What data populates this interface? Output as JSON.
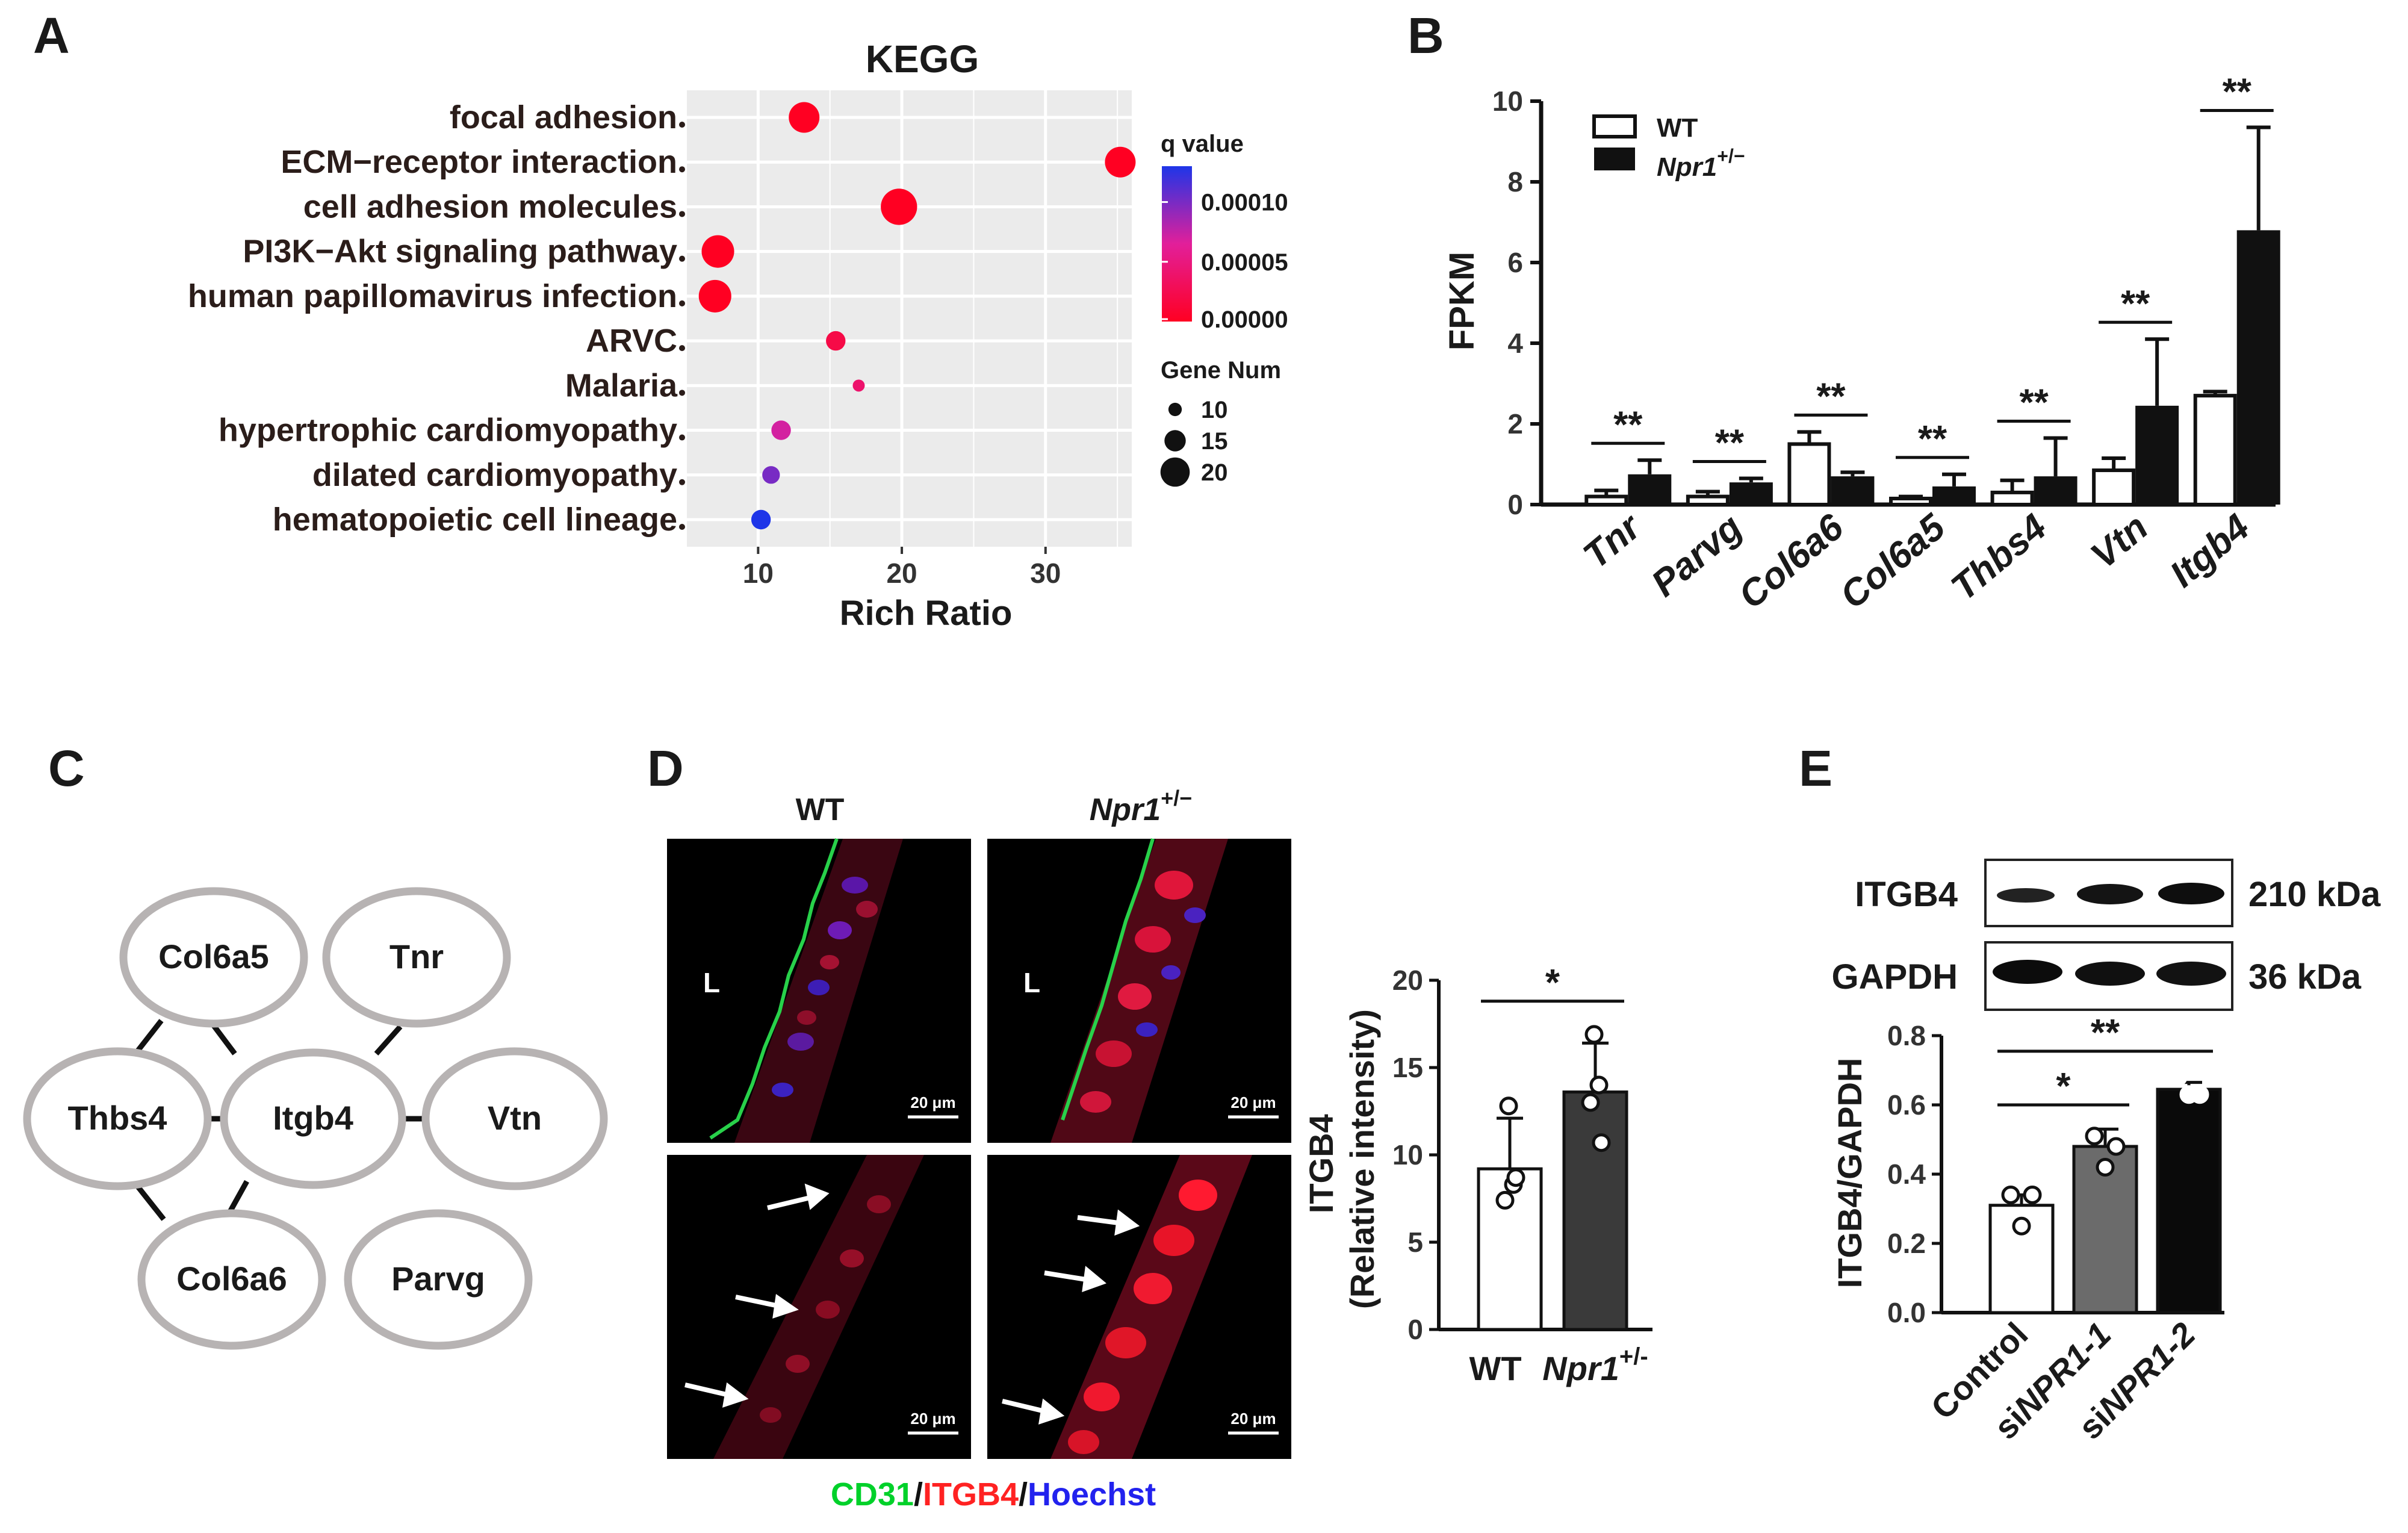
{
  "panel_labels": {
    "a": "A",
    "b": "B",
    "c": "C",
    "d": "D",
    "e": "E"
  },
  "chart_data": [
    {
      "panel": "A",
      "type": "scatter",
      "title": "KEGG",
      "xlabel": "Rich Ratio",
      "ylabel": "",
      "xlim": [
        5,
        36
      ],
      "xticks": [
        10,
        20,
        30
      ],
      "categories": [
        "focal adhesion",
        "ECM−receptor interaction",
        "cell adhesion molecules",
        "PI3K−Akt signaling pathway",
        "human papillomavirus infection",
        "ARVC",
        "Malaria",
        "hypertrophic cardiomyopathy",
        "dilated cardiomyopathy",
        "hematopoietic cell lineage"
      ],
      "points": [
        {
          "x": 13.2,
          "gene_num": 18,
          "q": 0.0
        },
        {
          "x": 35.2,
          "gene_num": 18,
          "q": 0.0
        },
        {
          "x": 19.8,
          "gene_num": 21,
          "q": 0.0
        },
        {
          "x": 7.2,
          "gene_num": 19,
          "q": 0.0
        },
        {
          "x": 7.0,
          "gene_num": 19,
          "q": 0.0
        },
        {
          "x": 15.4,
          "gene_num": 12,
          "q": 2e-05
        },
        {
          "x": 17.0,
          "gene_num": 8,
          "q": 4e-05
        },
        {
          "x": 11.6,
          "gene_num": 12,
          "q": 7e-05
        },
        {
          "x": 10.9,
          "gene_num": 11,
          "q": 0.0001
        },
        {
          "x": 10.2,
          "gene_num": 12,
          "q": 0.00013
        }
      ],
      "color_legend": {
        "title": "q value",
        "labels": [
          "0.00010",
          "0.00005",
          "0.00000"
        ],
        "values": [
          0.0001,
          5e-05,
          0.0
        ],
        "max": 0.00013
      },
      "size_legend": {
        "title": "Gene Num",
        "labels": [
          "10",
          "15",
          "20"
        ],
        "values": [
          10,
          15,
          20
        ]
      }
    },
    {
      "panel": "B",
      "type": "bar",
      "ylabel": "FPKM",
      "ylim": [
        0,
        10
      ],
      "yticks": [
        "0",
        "2",
        "4",
        "6",
        "8",
        "10"
      ],
      "categories": [
        "Tnr",
        "Parvg",
        "Col6a6",
        "Col6a5",
        "Thbs4",
        "Vtn",
        "Itgb4"
      ],
      "series": [
        {
          "name": "WT",
          "values": [
            0.2,
            0.2,
            1.5,
            0.15,
            0.3,
            0.85,
            2.7
          ],
          "errors": [
            0.15,
            0.12,
            0.3,
            0.05,
            0.3,
            0.3,
            0.1
          ]
        },
        {
          "name": "Npr1",
          "name_sup": "+/−",
          "values": [
            0.75,
            0.55,
            0.7,
            0.45,
            0.7,
            2.45,
            6.8
          ],
          "errors": [
            0.35,
            0.1,
            0.1,
            0.3,
            0.95,
            1.65,
            2.55
          ]
        }
      ],
      "significance": [
        "**",
        "**",
        "**",
        "**",
        "**",
        "**",
        "**"
      ]
    },
    {
      "panel": "D",
      "type": "bar",
      "ylabel_line1": "ITGB4",
      "ylabel_line2": "(Relative intensity)",
      "ylim": [
        0,
        20
      ],
      "yticks": [
        "0",
        "5",
        "10",
        "15",
        "20"
      ],
      "categories": [
        "WT",
        "Npr1"
      ],
      "category_sup": [
        "",
        "+/-"
      ],
      "values": [
        9.2,
        13.6
      ],
      "errors": [
        2.9,
        2.8
      ],
      "points": [
        [
          12.8,
          8.3,
          7.4,
          8.7
        ],
        [
          16.9,
          14.0,
          13.0,
          10.7
        ]
      ],
      "colors": [
        "#ffffff",
        "#3a3a3a"
      ],
      "significance": "*"
    },
    {
      "panel": "E",
      "type": "bar",
      "ylabel": "ITGB4/GAPDH",
      "ylim": [
        0,
        0.8
      ],
      "yticks": [
        "0.0",
        "0.2",
        "0.4",
        "0.6",
        "0.8"
      ],
      "categories": [
        "Control",
        "siNPR1-1",
        "siNPR1-2"
      ],
      "category_prefix": [
        "",
        "si",
        "si"
      ],
      "category_italic": [
        "",
        "NPR1-1",
        "NPR1-2"
      ],
      "values": [
        0.31,
        0.48,
        0.645
      ],
      "errors": [
        0.03,
        0.05,
        0.02
      ],
      "points": [
        [
          0.34,
          0.34,
          0.25
        ],
        [
          0.51,
          0.48,
          0.42
        ],
        [
          0.68,
          0.63,
          0.63
        ]
      ],
      "colors": [
        "#ffffff",
        "#6b6b6b",
        "#0a0a0a"
      ],
      "significance": [
        {
          "pair": "Control-siNPR1-1",
          "mark": "*"
        },
        {
          "pair": "Control-siNPR1-2",
          "mark": "**"
        }
      ]
    }
  ],
  "network": {
    "nodes": [
      "Col6a5",
      "Tnr",
      "Thbs4",
      "Itgb4",
      "Vtn",
      "Col6a6",
      "Parvg"
    ],
    "edges": [
      [
        "Col6a5",
        "Itgb4"
      ],
      [
        "Thbs4",
        "Itgb4"
      ],
      [
        "Itgb4",
        "Tnr"
      ],
      [
        "Itgb4",
        "Vtn"
      ],
      [
        "Itgb4",
        "Col6a6"
      ],
      [
        "Thbs4",
        "Col6a6"
      ],
      [
        "Thbs4",
        "Col6a5"
      ]
    ]
  },
  "microscopy": {
    "col_labels": [
      "WT",
      "Npr1"
    ],
    "col_sup": [
      "",
      "+/−"
    ],
    "lumen_label": "L",
    "scale_bar": "20 μm",
    "stain_legend": [
      {
        "text": "CD31",
        "color": "#00d12a"
      },
      {
        "text": "/",
        "color": "#111111"
      },
      {
        "text": "ITGB4",
        "color": "#ff2222"
      },
      {
        "text": "/",
        "color": "#111111"
      },
      {
        "text": "Hoechst",
        "color": "#2222ee"
      }
    ]
  },
  "western_blot": {
    "bands": [
      {
        "name": "ITGB4",
        "size": "210 kDa"
      },
      {
        "name": "GAPDH",
        "size": "36 kDa"
      }
    ]
  }
}
